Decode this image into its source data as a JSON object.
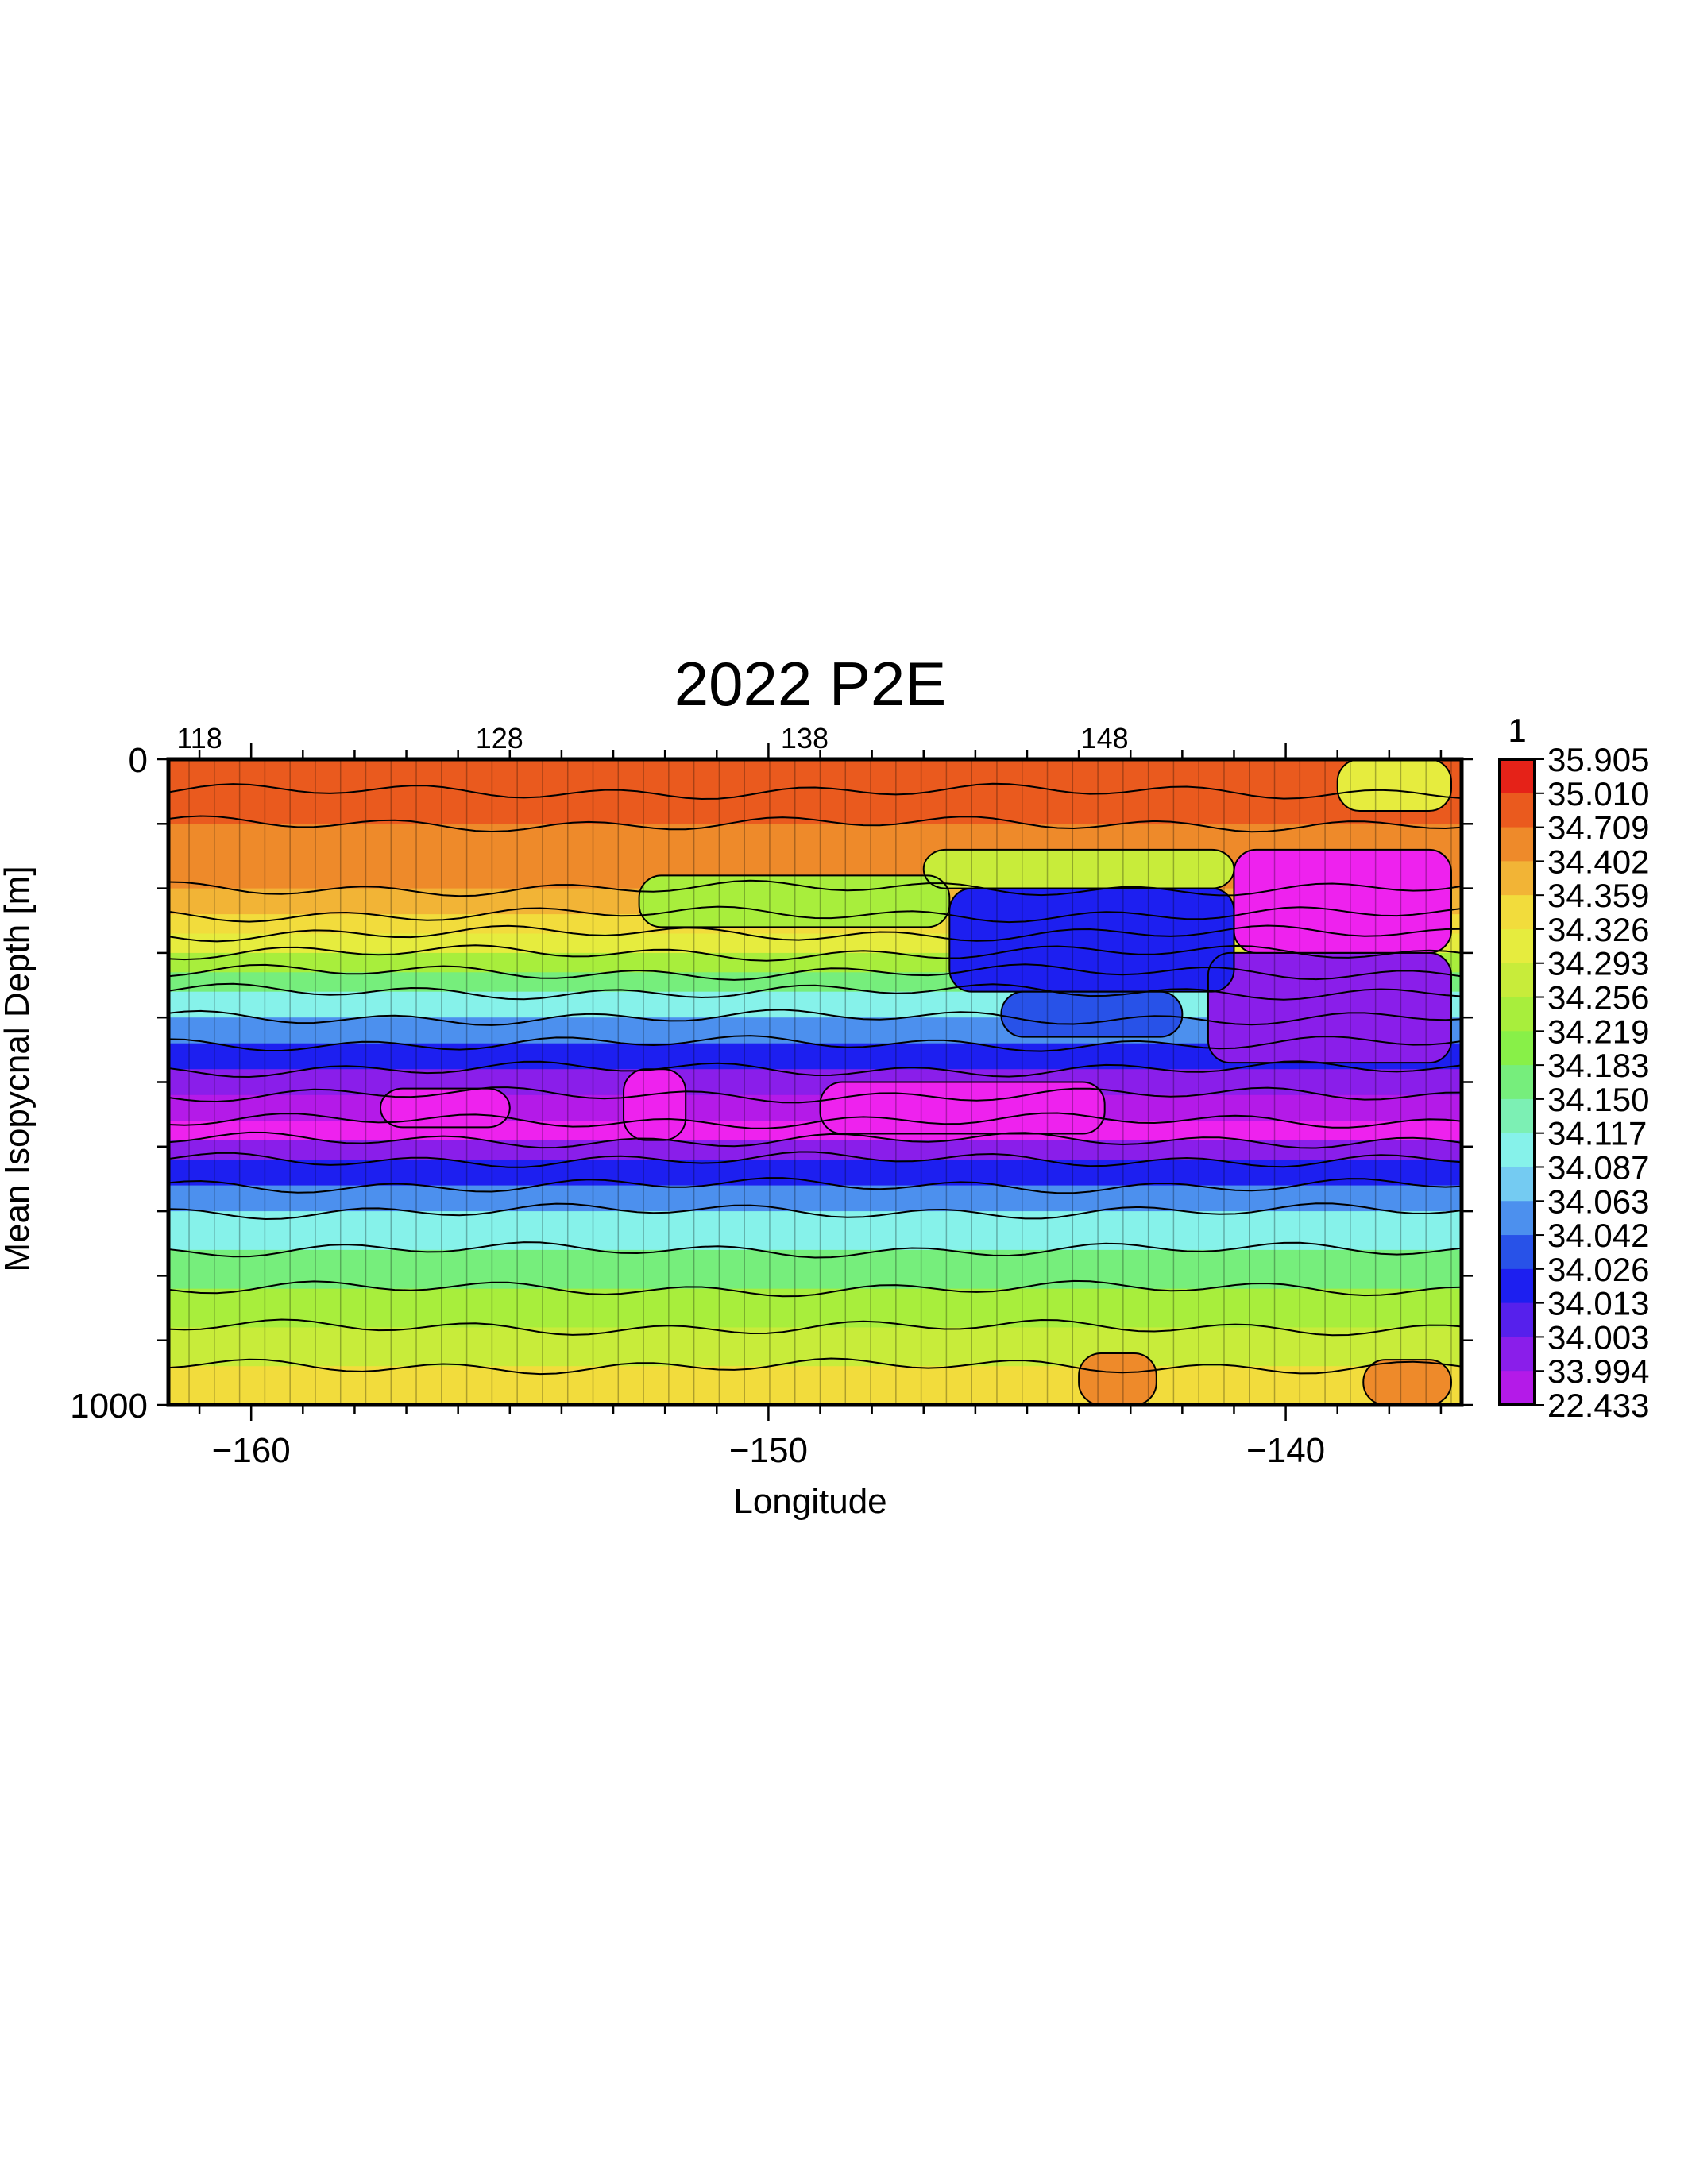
{
  "chart_data": {
    "type": "heatmap",
    "title": "2022 P2E",
    "xlabel": "Longitude",
    "ylabel": "Mean Isopycnal Depth [m]",
    "xlim": [
      -161.6,
      -136.6
    ],
    "ylim": [
      0,
      1000
    ],
    "y_reversed": true,
    "x_ticks": [
      -160,
      -150,
      -140
    ],
    "x_tick_labels": [
      "−160",
      "−150",
      "−140"
    ],
    "y_tick_labels": [
      "0",
      "1000"
    ],
    "station_ticks": [
      118,
      128,
      138,
      148
    ],
    "station_tick_x": [
      -161.0,
      -155.2,
      -149.3,
      -143.5
    ],
    "colorbar_label": "1",
    "colorbar_levels": [
      "35.905",
      "35.010",
      "34.709",
      "34.402",
      "34.359",
      "34.326",
      "34.293",
      "34.256",
      "34.219",
      "34.183",
      "34.150",
      "34.117",
      "34.087",
      "34.063",
      "34.042",
      "34.026",
      "34.013",
      "34.003",
      "33.994",
      "22.433"
    ],
    "colorbar_colors": [
      "#e52218",
      "#ea5a1e",
      "#ee8a2a",
      "#f2b436",
      "#f2dc3c",
      "#e6ec3e",
      "#c8ec3a",
      "#a8ee3c",
      "#88f048",
      "#76ee7c",
      "#7cf0b4",
      "#86f2ea",
      "#74cbf2",
      "#4c90ee",
      "#2852e8",
      "#1d1ff0",
      "#5620ec",
      "#8a1eea",
      "#b41ae8",
      "#ee22ee"
    ],
    "depth_profile": [
      {
        "depth": 0,
        "level": 1
      },
      {
        "depth": 50,
        "level": 1
      },
      {
        "depth": 100,
        "level": 2
      },
      {
        "depth": 200,
        "level": 3
      },
      {
        "depth": 240,
        "level": 4
      },
      {
        "depth": 270,
        "level": 5
      },
      {
        "depth": 300,
        "level": 7
      },
      {
        "depth": 330,
        "level": 9
      },
      {
        "depth": 360,
        "level": 11
      },
      {
        "depth": 400,
        "level": 13
      },
      {
        "depth": 440,
        "level": 15
      },
      {
        "depth": 480,
        "level": 17
      },
      {
        "depth": 520,
        "level": 18
      },
      {
        "depth": 560,
        "level": 19
      },
      {
        "depth": 590,
        "level": 17
      },
      {
        "depth": 620,
        "level": 15
      },
      {
        "depth": 660,
        "level": 13
      },
      {
        "depth": 700,
        "level": 11
      },
      {
        "depth": 760,
        "level": 9
      },
      {
        "depth": 820,
        "level": 7
      },
      {
        "depth": 880,
        "level": 6
      },
      {
        "depth": 940,
        "level": 4
      },
      {
        "depth": 1000,
        "level": 3
      }
    ],
    "features": [
      {
        "lon_min": -141.0,
        "lon_max": -136.8,
        "depth_min": 140,
        "depth_max": 300,
        "level": 19
      },
      {
        "lon_min": -141.5,
        "lon_max": -136.8,
        "depth_min": 300,
        "depth_max": 470,
        "level": 17
      },
      {
        "lon_min": -146.5,
        "lon_max": -141.0,
        "depth_min": 200,
        "depth_max": 360,
        "level": 15
      },
      {
        "lon_min": -145.5,
        "lon_max": -142.0,
        "depth_min": 360,
        "depth_max": 430,
        "level": 14
      },
      {
        "lon_min": -139.0,
        "lon_max": -136.8,
        "depth_min": 0,
        "depth_max": 80,
        "level": 5
      },
      {
        "lon_min": -147.0,
        "lon_max": -141.0,
        "depth_min": 140,
        "depth_max": 200,
        "level": 6
      },
      {
        "lon_min": -152.5,
        "lon_max": -146.5,
        "depth_min": 180,
        "depth_max": 260,
        "level": 7
      },
      {
        "lon_min": -152.8,
        "lon_max": -151.6,
        "depth_min": 480,
        "depth_max": 590,
        "level": 19
      },
      {
        "lon_min": -149.0,
        "lon_max": -143.5,
        "depth_min": 500,
        "depth_max": 580,
        "level": 19
      },
      {
        "lon_min": -157.5,
        "lon_max": -155.0,
        "depth_min": 510,
        "depth_max": 570,
        "level": 19
      },
      {
        "lon_min": -144.0,
        "lon_max": -142.5,
        "depth_min": 920,
        "depth_max": 1000,
        "level": 2
      },
      {
        "lon_min": -138.5,
        "lon_max": -136.8,
        "depth_min": 930,
        "depth_max": 1000,
        "level": 2
      }
    ],
    "grid": false
  }
}
